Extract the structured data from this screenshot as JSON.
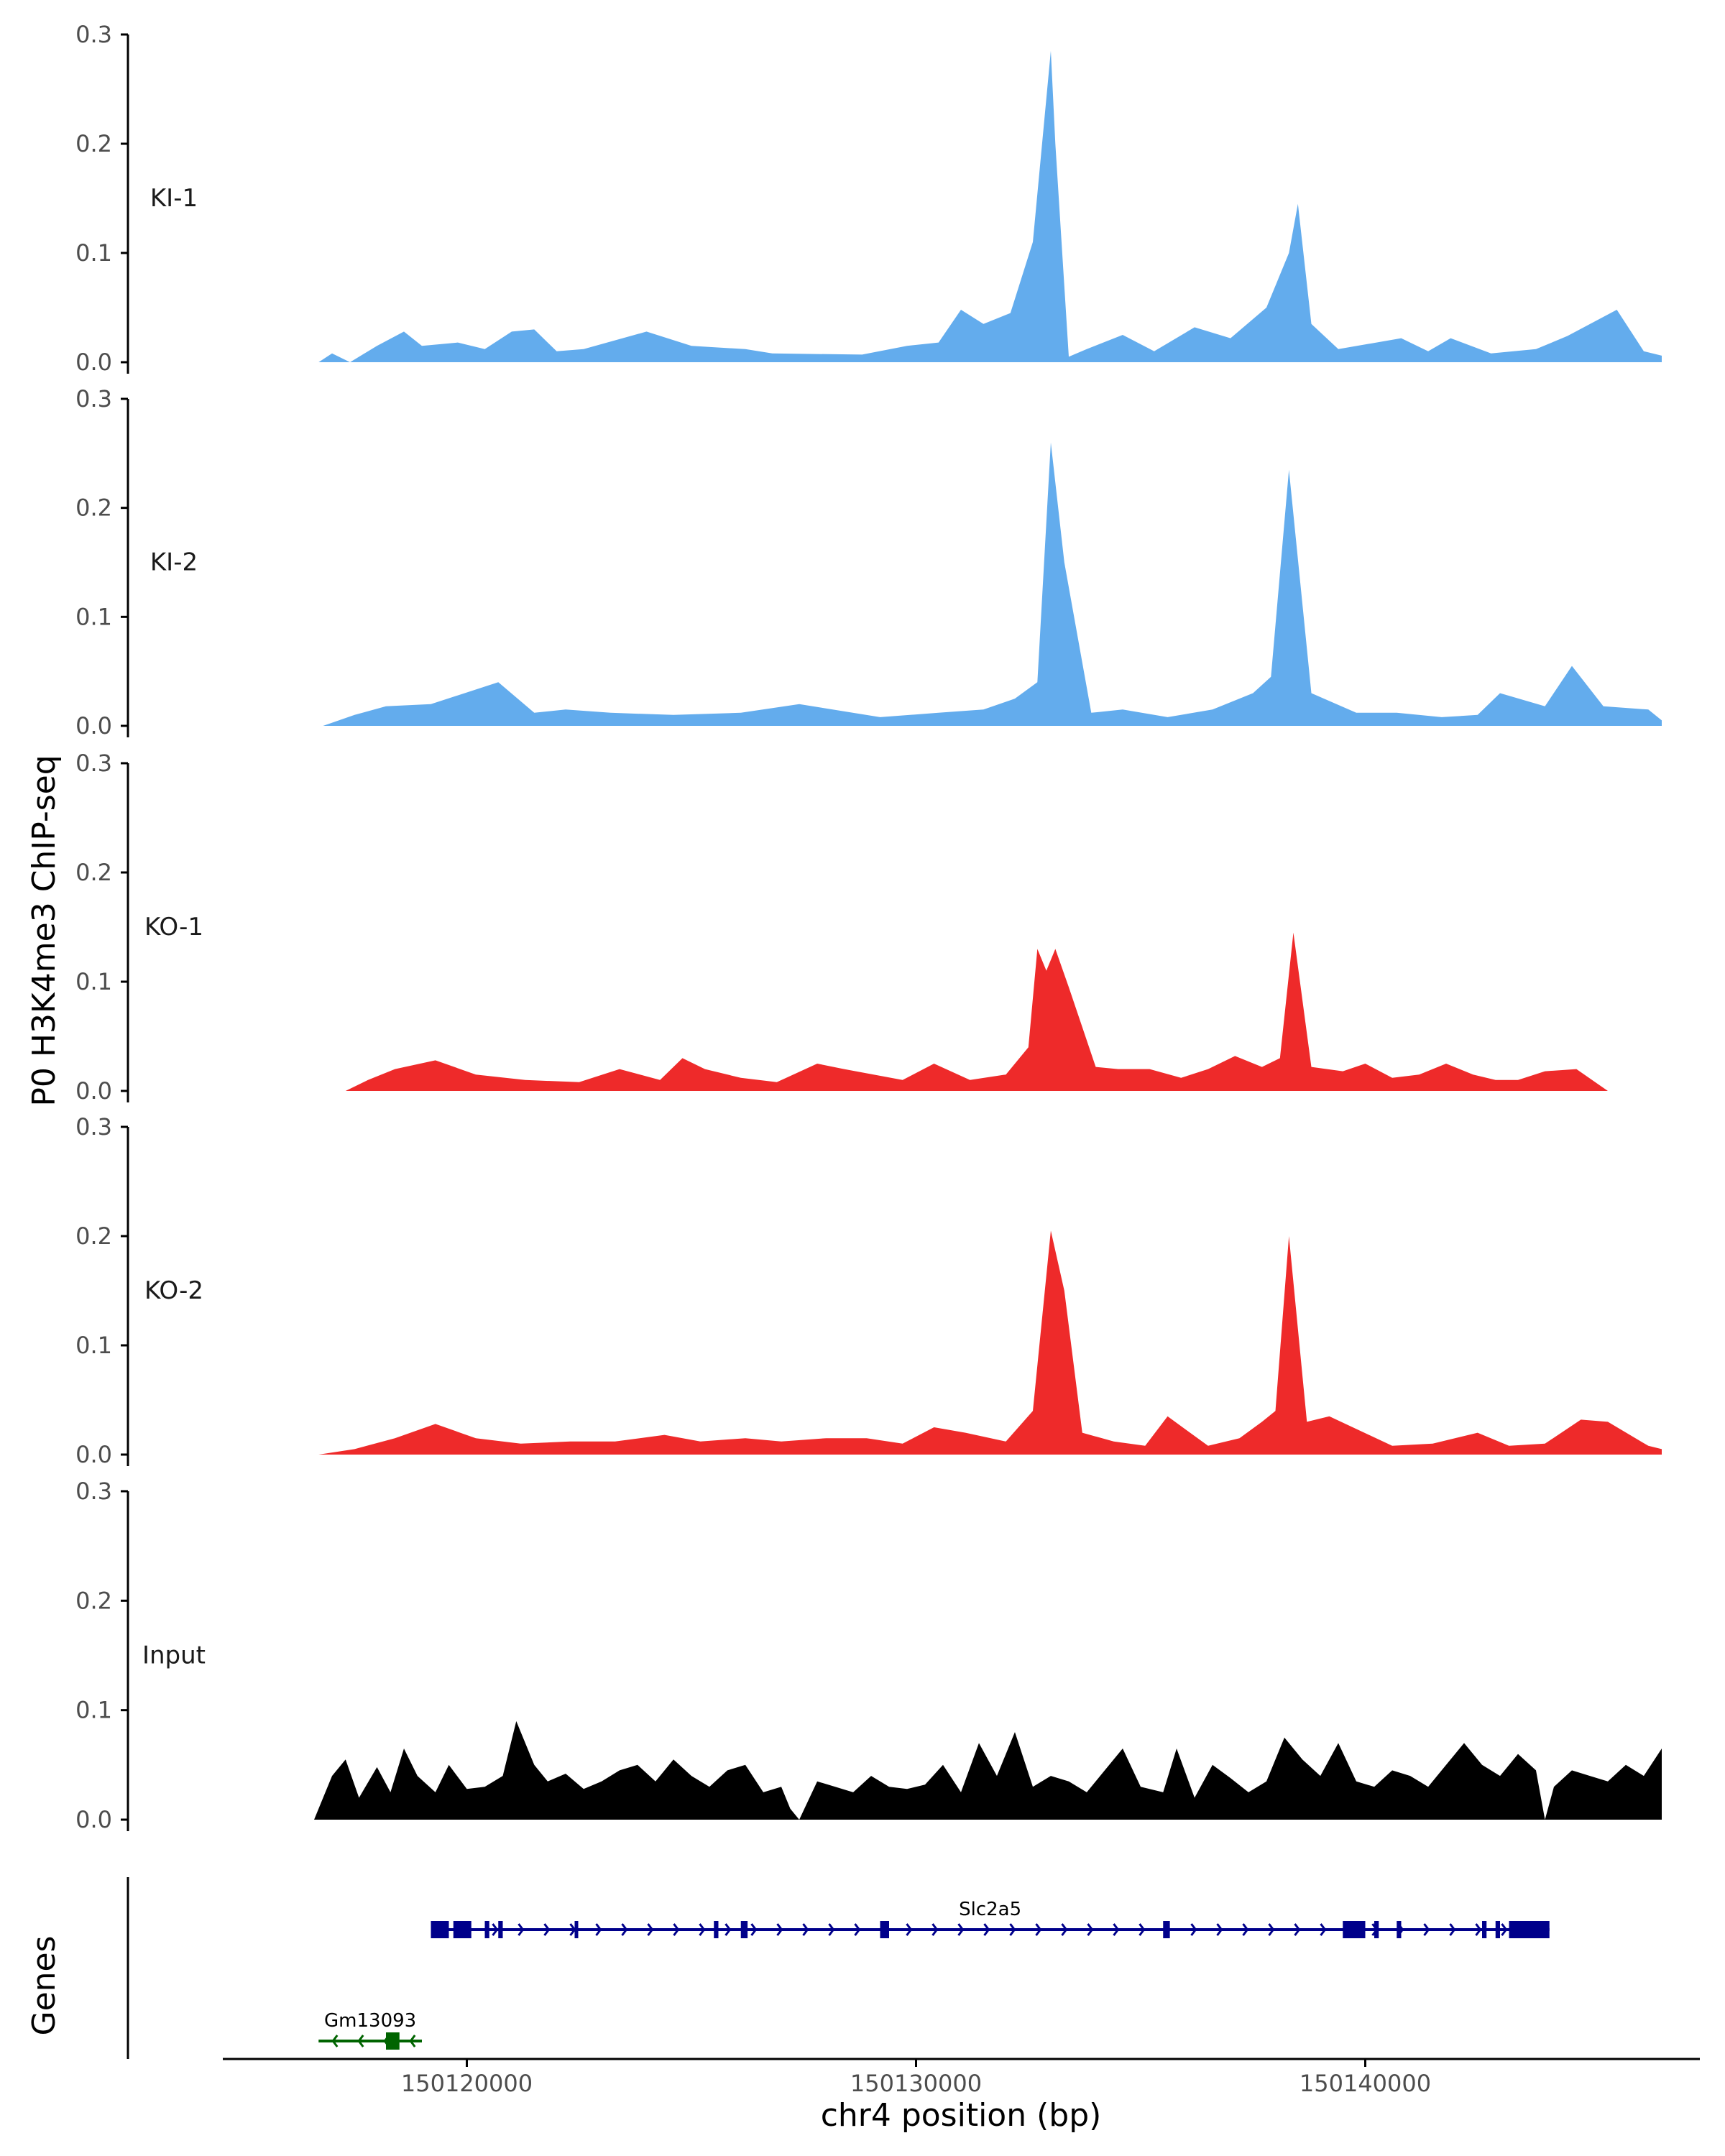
{
  "chart_data": {
    "type": "area",
    "title": "",
    "ylabel": "P0 H3K4me3 ChIP-seq",
    "xlabel": "chr4 position (bp)",
    "genes_label": "Genes",
    "ylim": [
      0,
      0.3
    ],
    "y_ticks": [
      0.0,
      0.1,
      0.2,
      0.3
    ],
    "y_tick_labels": [
      "0.0",
      "0.1",
      "0.2",
      "0.3"
    ],
    "xlim": [
      150114600,
      150147400
    ],
    "x_ticks": [
      150120000,
      150130000,
      150140000
    ],
    "x_tick_labels": [
      "150120000",
      "150130000",
      "150140000"
    ],
    "colors": {
      "KI": "#63aced",
      "KO": "#ee2a2a",
      "Input": "#000000",
      "gene_main": "#00008b",
      "gene_other": "#006400",
      "axis": "#000000"
    },
    "tracks": [
      {
        "name": "KI-1",
        "color": "#63aced",
        "x": [
          150116700,
          150117000,
          150117400,
          150118000,
          150118600,
          150119000,
          150119800,
          150120400,
          150121000,
          150121500,
          150122000,
          150122600,
          150124000,
          150125000,
          150126200,
          150126800,
          150128800,
          150129800,
          150130500,
          150131000,
          150131500,
          150132100,
          150132600,
          150133000,
          150133100,
          150133400,
          150133800,
          150134600,
          150135300,
          150136200,
          150137000,
          150137800,
          150138300,
          150138500,
          150138800,
          150139400,
          150140800,
          150141400,
          150141900,
          150142800,
          150143800,
          150144500,
          150145600,
          150146200,
          150146600
        ],
        "values": [
          0.0,
          0.008,
          0.0,
          0.015,
          0.028,
          0.015,
          0.018,
          0.012,
          0.028,
          0.03,
          0.01,
          0.012,
          0.028,
          0.015,
          0.012,
          0.008,
          0.007,
          0.015,
          0.018,
          0.048,
          0.035,
          0.045,
          0.11,
          0.285,
          0.2,
          0.005,
          0.012,
          0.025,
          0.01,
          0.032,
          0.022,
          0.05,
          0.1,
          0.145,
          0.035,
          0.012,
          0.022,
          0.01,
          0.022,
          0.008,
          0.012,
          0.024,
          0.048,
          0.01,
          0.006
        ]
      },
      {
        "name": "KI-2",
        "color": "#63aced",
        "x": [
          150116800,
          150117500,
          150118200,
          150119200,
          150120700,
          150121500,
          150122200,
          150123200,
          150124600,
          150126100,
          150127400,
          150129200,
          150130500,
          150131500,
          150132200,
          150132700,
          150133000,
          150133300,
          150133900,
          150134600,
          150135600,
          150136600,
          150137500,
          150137900,
          150138300,
          150138800,
          150139800,
          150140700,
          150141700,
          150142500,
          150143000,
          150144000,
          150144600,
          150145300,
          150146300,
          150146600
        ],
        "values": [
          0.0,
          0.01,
          0.018,
          0.02,
          0.04,
          0.012,
          0.015,
          0.012,
          0.01,
          0.012,
          0.02,
          0.008,
          0.012,
          0.015,
          0.025,
          0.04,
          0.26,
          0.15,
          0.012,
          0.015,
          0.008,
          0.015,
          0.03,
          0.045,
          0.235,
          0.03,
          0.012,
          0.012,
          0.008,
          0.01,
          0.03,
          0.018,
          0.055,
          0.018,
          0.015,
          0.005
        ]
      },
      {
        "name": "KO-1",
        "color": "#ee2a2a",
        "x": [
          150117300,
          150117800,
          150118400,
          150119300,
          150120200,
          150121300,
          150122500,
          150123400,
          150124300,
          150124800,
          150125300,
          150126100,
          150126900,
          150127800,
          150128400,
          150129700,
          150130400,
          150131200,
          150132000,
          150132500,
          150132700,
          150132900,
          150133100,
          150133400,
          150134000,
          150134500,
          150135200,
          150135900,
          150136500,
          150137100,
          150137700,
          150138100,
          150138400,
          150138800,
          150139500,
          150140000,
          150140600,
          150141200,
          150141800,
          150142400,
          150142900,
          150143400,
          150144000,
          150144700,
          150145400
        ],
        "values": [
          0.0,
          0.01,
          0.02,
          0.028,
          0.015,
          0.01,
          0.008,
          0.02,
          0.01,
          0.03,
          0.02,
          0.012,
          0.008,
          0.025,
          0.02,
          0.01,
          0.025,
          0.01,
          0.015,
          0.04,
          0.13,
          0.11,
          0.13,
          0.095,
          0.022,
          0.02,
          0.02,
          0.012,
          0.02,
          0.032,
          0.022,
          0.03,
          0.145,
          0.022,
          0.018,
          0.025,
          0.012,
          0.015,
          0.025,
          0.015,
          0.01,
          0.01,
          0.018,
          0.02,
          0.0
        ]
      },
      {
        "name": "KO-2",
        "color": "#ee2a2a",
        "x": [
          150116700,
          150117500,
          150118400,
          150119300,
          150120200,
          150121200,
          150122300,
          150123300,
          150124400,
          150125200,
          150126200,
          150127000,
          150128000,
          150128900,
          150129700,
          150130400,
          150131100,
          150132000,
          150132600,
          150133000,
          150133300,
          150133700,
          150134400,
          150135100,
          150135600,
          150136500,
          150137200,
          150137700,
          150138000,
          150138300,
          150138700,
          150139200,
          150140600,
          150141500,
          150142500,
          150143200,
          150144000,
          150144800,
          150145400,
          150146300,
          150146600
        ],
        "values": [
          0.0,
          0.005,
          0.015,
          0.028,
          0.015,
          0.01,
          0.012,
          0.012,
          0.018,
          0.012,
          0.015,
          0.012,
          0.015,
          0.015,
          0.01,
          0.025,
          0.02,
          0.012,
          0.04,
          0.205,
          0.15,
          0.02,
          0.012,
          0.008,
          0.035,
          0.008,
          0.015,
          0.03,
          0.04,
          0.2,
          0.03,
          0.035,
          0.008,
          0.01,
          0.02,
          0.008,
          0.01,
          0.032,
          0.03,
          0.008,
          0.005
        ]
      },
      {
        "name": "Input",
        "color": "#000000",
        "x": [
          150116600,
          150117000,
          150117300,
          150117600,
          150118000,
          150118300,
          150118600,
          150118900,
          150119300,
          150119600,
          150120000,
          150120400,
          150120800,
          150121100,
          150121500,
          150121800,
          150122200,
          150122600,
          150123000,
          150123400,
          150123800,
          150124200,
          150124600,
          150125000,
          150125400,
          150125800,
          150126200,
          150126600,
          150127000,
          150127200,
          150127400,
          150127800,
          150128200,
          150128600,
          150129000,
          150129400,
          150129800,
          150130200,
          150130600,
          150131000,
          150131400,
          150131800,
          150132200,
          150132600,
          150133000,
          150133400,
          150133800,
          150134200,
          150134600,
          150135000,
          150135500,
          150135800,
          150136200,
          150136600,
          150137000,
          150137400,
          150137800,
          150138200,
          150138600,
          150139000,
          150139400,
          150139800,
          150140200,
          150140600,
          150141000,
          150141400,
          150141800,
          150142200,
          150142600,
          150143000,
          150143400,
          150143800,
          150144000,
          150144200,
          150144600,
          150145000,
          150145400,
          150145800,
          150146200,
          150146600
        ],
        "values": [
          0.0,
          0.04,
          0.055,
          0.02,
          0.048,
          0.025,
          0.065,
          0.04,
          0.025,
          0.05,
          0.028,
          0.03,
          0.04,
          0.09,
          0.05,
          0.035,
          0.042,
          0.028,
          0.035,
          0.045,
          0.05,
          0.035,
          0.055,
          0.04,
          0.03,
          0.045,
          0.05,
          0.025,
          0.03,
          0.01,
          0.0,
          0.035,
          0.03,
          0.025,
          0.04,
          0.03,
          0.028,
          0.032,
          0.05,
          0.025,
          0.07,
          0.04,
          0.08,
          0.03,
          0.04,
          0.035,
          0.025,
          0.045,
          0.065,
          0.03,
          0.025,
          0.065,
          0.02,
          0.05,
          0.038,
          0.025,
          0.035,
          0.075,
          0.055,
          0.04,
          0.07,
          0.035,
          0.03,
          0.045,
          0.04,
          0.03,
          0.05,
          0.07,
          0.05,
          0.04,
          0.06,
          0.045,
          0.0,
          0.03,
          0.045,
          0.04,
          0.035,
          0.05,
          0.04,
          0.065
        ]
      }
    ],
    "genes": [
      {
        "name": "Slc2a5",
        "strand": "+",
        "color": "#00008b",
        "row": "upper",
        "start": 150119200,
        "end": 150144100,
        "exons": [
          [
            150119200,
            150119600
          ],
          [
            150119700,
            150120100
          ],
          [
            150120400,
            150120500
          ],
          [
            150120700,
            150120800
          ],
          [
            150122400,
            150122450
          ],
          [
            150125500,
            150125600
          ],
          [
            150126100,
            150126250
          ],
          [
            150129200,
            150129400
          ],
          [
            150135500,
            150135650
          ],
          [
            150139500,
            150140000
          ],
          [
            150140200,
            150140300
          ],
          [
            150140700,
            150140800
          ],
          [
            150142600,
            150142700
          ],
          [
            150142900,
            150143000
          ],
          [
            150143200,
            150144100
          ]
        ]
      },
      {
        "name": "Gm13093",
        "strand": "-",
        "color": "#006400",
        "row": "lower",
        "start": 150116700,
        "end": 150119000,
        "exons": [
          [
            150118200,
            150118500
          ]
        ]
      }
    ]
  }
}
